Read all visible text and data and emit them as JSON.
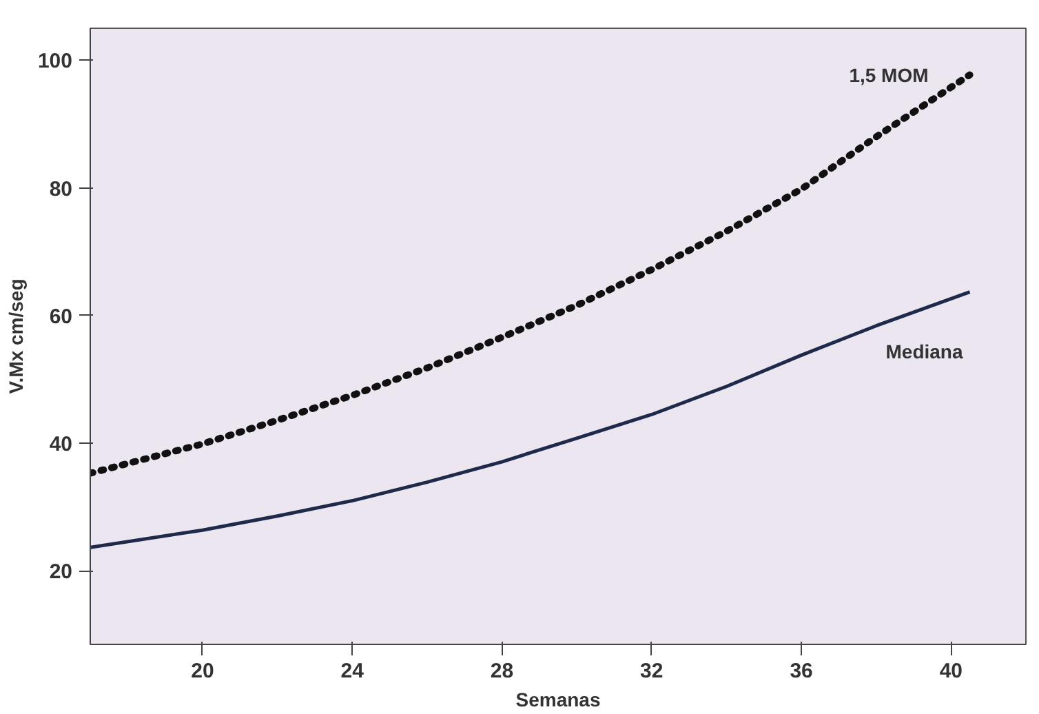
{
  "chart_data": {
    "type": "line",
    "xlabel": "Semanas",
    "ylabel": "V.Mx cm/seg",
    "xlim": [
      17,
      42
    ],
    "ylim": [
      8.5,
      105
    ],
    "xticks": [
      20,
      24,
      28,
      32,
      36,
      40
    ],
    "yticks": [
      20,
      40,
      60,
      80,
      100
    ],
    "grid": false,
    "marker": "none",
    "series": [
      {
        "name": "1,5 MOM",
        "color": "#111111",
        "line_style": "dotted",
        "x": [
          17,
          20,
          22,
          24,
          26,
          28,
          30,
          32,
          34,
          36,
          38,
          40.5
        ],
        "values": [
          35.3,
          39.9,
          43.6,
          47.5,
          51.8,
          56.6,
          61.6,
          67.2,
          73.2,
          79.8,
          88.0,
          97.7
        ]
      },
      {
        "name": "Mediana",
        "color": "#1f2a4a",
        "line_style": "solid",
        "x": [
          17,
          20,
          22,
          24,
          26,
          28,
          30,
          32,
          34,
          36,
          38,
          40.5
        ],
        "values": [
          23.7,
          26.4,
          28.6,
          31.0,
          33.9,
          37.1,
          40.8,
          44.5,
          48.9,
          53.8,
          58.4,
          63.7
        ]
      }
    ]
  }
}
